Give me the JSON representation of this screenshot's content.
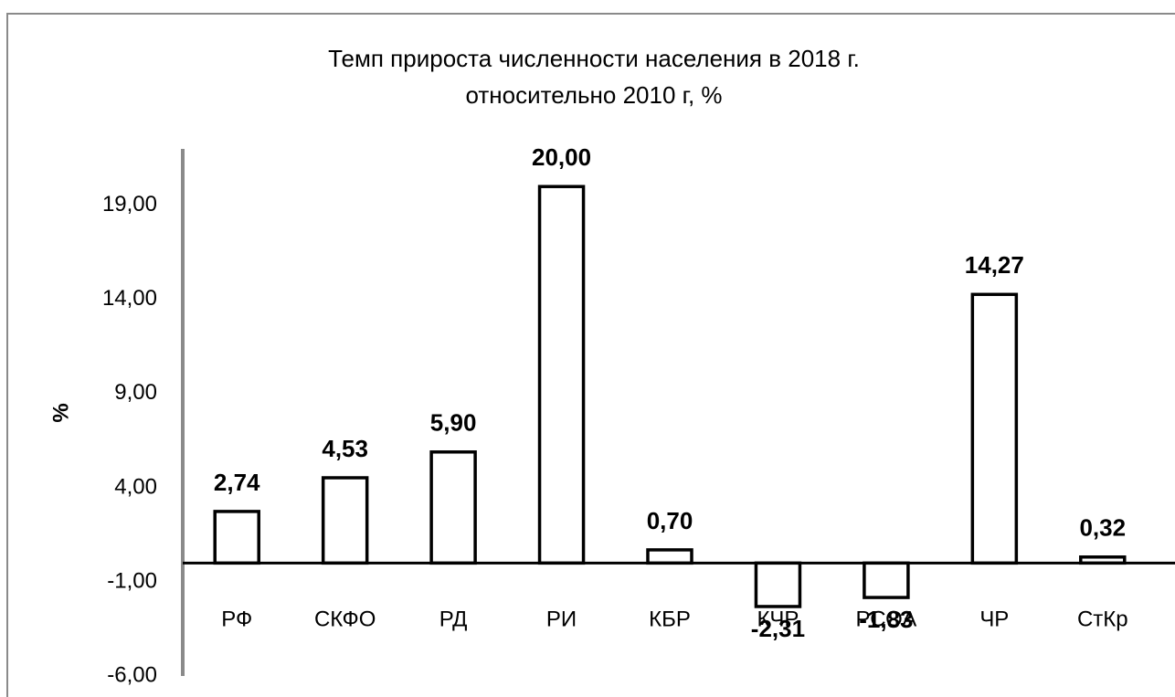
{
  "chart_data": {
    "type": "bar",
    "title": [
      "Темп прироста численности населения в 2018 г.",
      "относительно 2010 г, %"
    ],
    "y_label": "%",
    "categories": [
      "РФ",
      "СКФО",
      "РД",
      "РИ",
      "КБР",
      "КЧР",
      "РСОА",
      "ЧР",
      "СтКр"
    ],
    "values": [
      2.74,
      4.53,
      5.9,
      20,
      0.7,
      -2.31,
      -1.83,
      14.27,
      0.32
    ],
    "value_labels": [
      "2,74",
      "4,53",
      "5,90",
      "20,00",
      "0,70",
      "-2,31",
      "-1,83",
      "14,27",
      "0,32"
    ],
    "color": "#ffffff",
    "ylim": [
      -6,
      22
    ],
    "yticks": [
      {
        "value": -6,
        "label": "-6,00"
      },
      {
        "value": -1,
        "label": "-1,00"
      },
      {
        "value": 4,
        "label": "4,00"
      },
      {
        "value": 9,
        "label": "9,00"
      },
      {
        "value": 14,
        "label": "14,00"
      },
      {
        "value": 19,
        "label": "19,00"
      }
    ],
    "grid": false
  }
}
